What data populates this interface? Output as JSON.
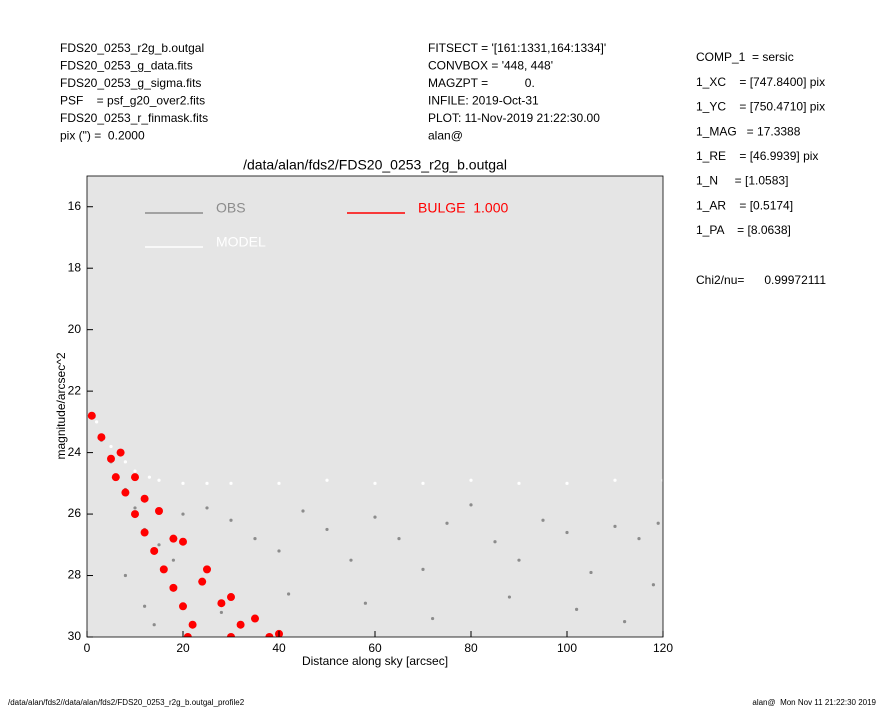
{
  "header": {
    "left": [
      "FDS20_0253_r2g_b.outgal",
      "FDS20_0253_g_data.fits",
      "FDS20_0253_g_sigma.fits",
      "PSF    = psf_g20_over2.fits",
      "FDS20_0253_r_finmask.fits",
      "pix (\") =  0.2000"
    ],
    "middle": [
      "FITSECT = '[161:1331,164:1334]'",
      "CONVBOX = '448, 448'",
      "MAGZPT =           0.",
      "INFILE: 2019-Oct-31",
      "PLOT: 11-Nov-2019 21:22:30.00",
      "alan@"
    ],
    "right": [
      "COMP_1  = sersic",
      "1_XC    = [747.8400] pix",
      "1_YC    = [750.4710] pix",
      "1_MAG   = 17.3388",
      "1_RE    = [46.9939] pix",
      "1_N     = [1.0583]",
      "1_AR    = [0.5174]",
      "1_PA    = [8.0638]"
    ],
    "chi": "Chi2/nu=      0.99972111"
  },
  "footer": {
    "left": "/data/alan/fds2//data/alan/fds2/FDS20_0253_r2g_b.outgal_profile2",
    "right": "alan@  Mon Nov 11 21:22:30 2019"
  },
  "chart_data": {
    "type": "scatter",
    "title": "/data/alan/fds2/FDS20_0253_r2g_b.outgal",
    "x_label": "Distance along sky [arcsec]",
    "y_label": "magnitude/arcsec^2",
    "xlim": [
      0,
      120
    ],
    "ylim": [
      30,
      15
    ],
    "y_inverted": true,
    "xticks": [
      0,
      20,
      40,
      60,
      80,
      100,
      120
    ],
    "yticks": [
      16,
      18,
      20,
      22,
      24,
      26,
      28,
      30
    ],
    "background": "#e5e5e5",
    "series": [
      {
        "name": "OBS",
        "color": "#8c8c8c",
        "x": [
          1,
          3,
          5,
          8,
          10,
          12,
          15,
          18,
          20,
          25,
          30,
          35,
          40,
          45,
          50,
          55,
          60,
          65,
          70,
          75,
          80,
          85,
          90,
          95,
          100,
          105,
          110,
          115,
          119,
          8,
          12,
          14,
          28,
          42,
          58,
          72,
          88,
          102,
          112,
          118
        ],
        "y": [
          22.8,
          23.6,
          24.3,
          25.2,
          25.8,
          26.5,
          27,
          27.5,
          26,
          25.8,
          26.2,
          26.8,
          27.2,
          25.9,
          26.5,
          27.5,
          26.1,
          26.8,
          27.8,
          26.3,
          25.7,
          26.9,
          27.5,
          26.2,
          26.6,
          27.9,
          26.4,
          26.8,
          26.3,
          28,
          29,
          29.6,
          29.2,
          28.6,
          28.9,
          29.4,
          28.7,
          29.1,
          29.5,
          28.3
        ]
      },
      {
        "name": "MODEL",
        "color": "#ffffff",
        "x": [
          2,
          5,
          8,
          10,
          13,
          15,
          20,
          25,
          30,
          40,
          50,
          60,
          70,
          80,
          90,
          100,
          110,
          120
        ],
        "y": [
          23,
          23.8,
          24.3,
          24.6,
          24.8,
          24.9,
          25,
          25,
          25,
          25,
          24.9,
          25,
          25,
          24.9,
          25,
          25,
          24.9,
          24.9
        ]
      },
      {
        "name": "BULGE  1.000",
        "color": "#ff0000",
        "x": [
          1,
          3,
          5,
          6,
          8,
          10,
          12,
          14,
          16,
          18,
          20,
          22,
          7,
          10,
          15,
          20,
          25,
          30,
          35,
          40,
          12,
          18,
          24,
          28,
          32,
          21,
          30,
          38
        ],
        "y": [
          22.8,
          23.5,
          24.2,
          24.8,
          25.3,
          26,
          26.6,
          27.2,
          27.8,
          28.4,
          29,
          29.6,
          24,
          24.8,
          25.9,
          26.9,
          27.8,
          28.7,
          29.4,
          29.9,
          25.5,
          26.8,
          28.2,
          28.9,
          29.6,
          30,
          30,
          30
        ]
      }
    ]
  }
}
